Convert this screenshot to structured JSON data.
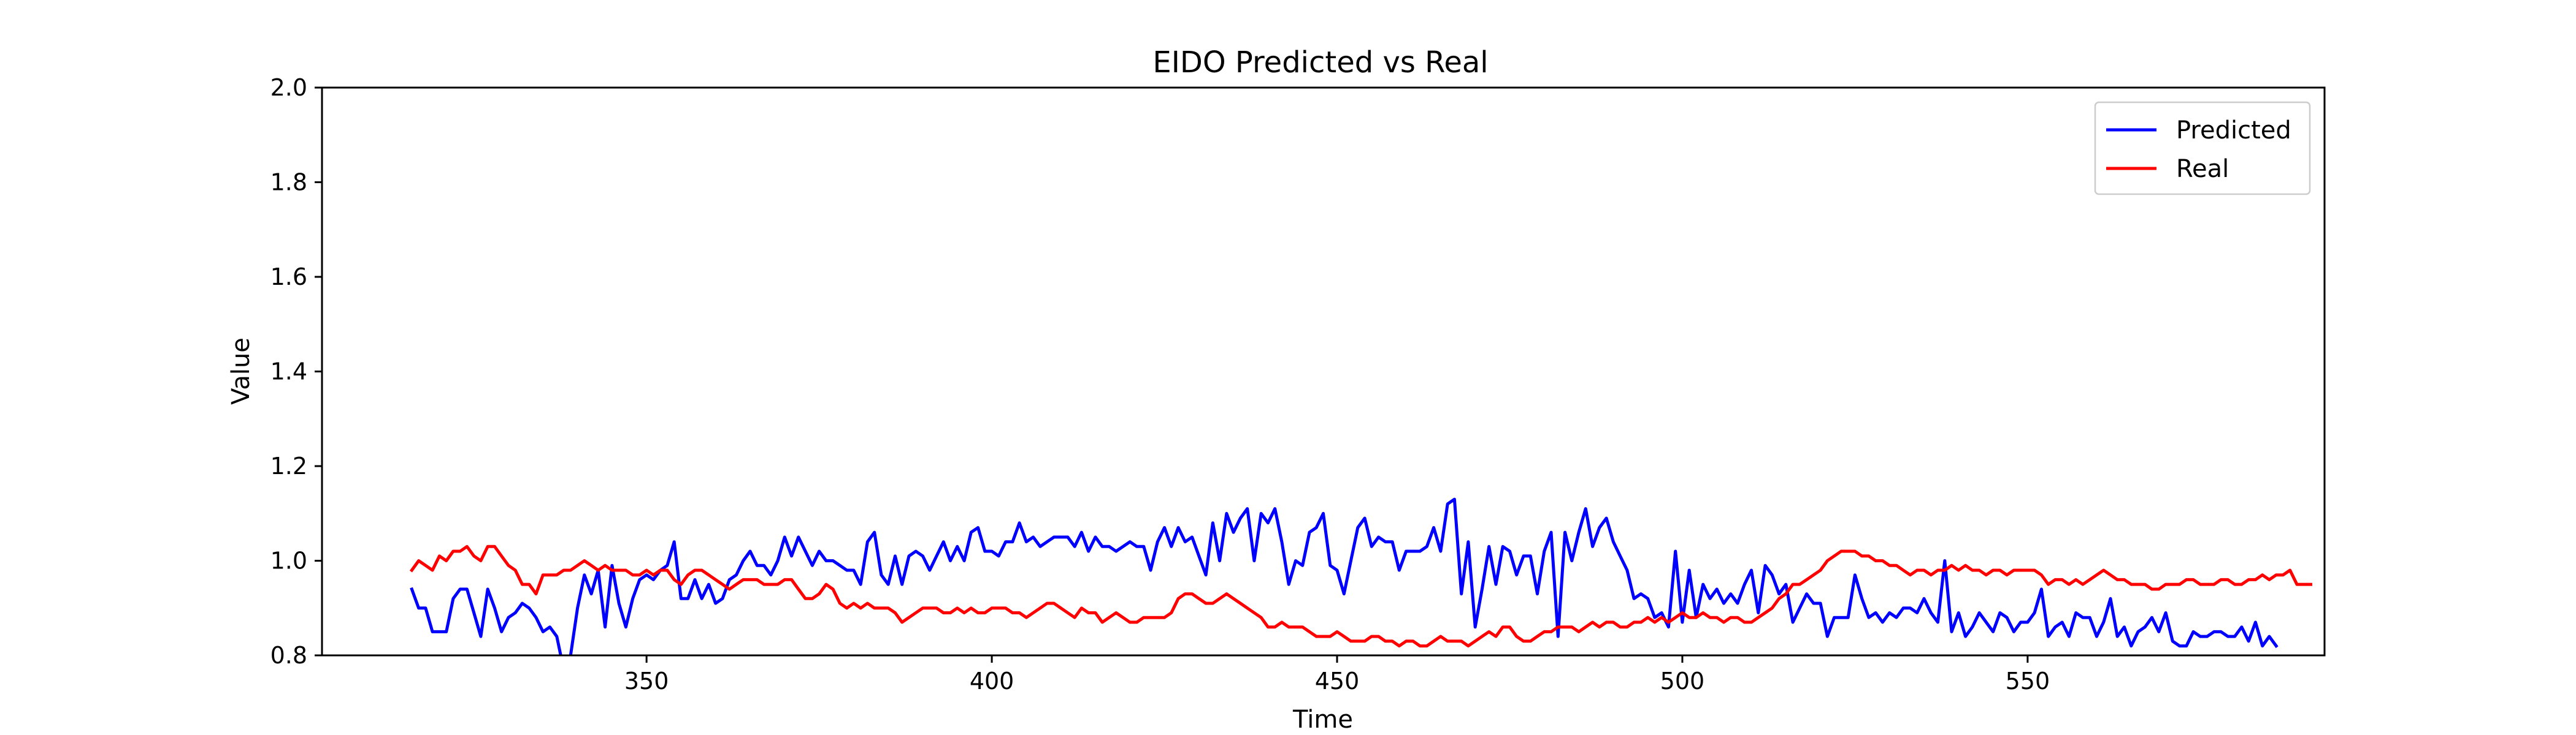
{
  "chart_data": {
    "type": "line",
    "title": "EIDO Predicted vs Real",
    "xlabel": "Time",
    "ylabel": "Value",
    "xlim": [
      303,
      593
    ],
    "ylim": [
      0.8,
      2.0
    ],
    "xticks": [
      350,
      400,
      450,
      500,
      550
    ],
    "yticks": [
      0.8,
      1.0,
      1.2,
      1.4,
      1.6,
      1.8,
      2.0
    ],
    "grid": false,
    "legend_position": "top-right",
    "series": [
      {
        "name": "Predicted",
        "color": "#0000ff",
        "x_start": 316,
        "values": [
          0.94,
          0.9,
          0.9,
          0.85,
          0.85,
          0.85,
          0.92,
          0.94,
          0.94,
          0.89,
          0.84,
          0.94,
          0.9,
          0.85,
          0.88,
          0.89,
          0.91,
          0.9,
          0.88,
          0.85,
          0.86,
          0.84,
          0.77,
          0.8,
          0.9,
          0.97,
          0.93,
          0.98,
          0.86,
          0.99,
          0.91,
          0.86,
          0.92,
          0.96,
          0.97,
          0.96,
          0.98,
          0.99,
          1.04,
          0.92,
          0.92,
          0.96,
          0.92,
          0.95,
          0.91,
          0.92,
          0.96,
          0.97,
          1.0,
          1.02,
          0.99,
          0.99,
          0.97,
          1.0,
          1.05,
          1.01,
          1.05,
          1.02,
          0.99,
          1.02,
          1.0,
          1.0,
          0.99,
          0.98,
          0.98,
          0.95,
          1.04,
          1.06,
          0.97,
          0.95,
          1.01,
          0.95,
          1.01,
          1.02,
          1.01,
          0.98,
          1.01,
          1.04,
          1.0,
          1.03,
          1.0,
          1.06,
          1.07,
          1.02,
          1.02,
          1.01,
          1.04,
          1.04,
          1.08,
          1.04,
          1.05,
          1.03,
          1.04,
          1.05,
          1.05,
          1.05,
          1.03,
          1.06,
          1.02,
          1.05,
          1.03,
          1.03,
          1.02,
          1.03,
          1.04,
          1.03,
          1.03,
          0.98,
          1.04,
          1.07,
          1.03,
          1.07,
          1.04,
          1.05,
          1.01,
          0.97,
          1.08,
          1.0,
          1.1,
          1.06,
          1.09,
          1.11,
          1.0,
          1.1,
          1.08,
          1.11,
          1.04,
          0.95,
          1.0,
          0.99,
          1.06,
          1.07,
          1.1,
          0.99,
          0.98,
          0.93,
          1.0,
          1.07,
          1.09,
          1.03,
          1.05,
          1.04,
          1.04,
          0.98,
          1.02,
          1.02,
          1.02,
          1.03,
          1.07,
          1.02,
          1.12,
          1.13,
          0.93,
          1.04,
          0.86,
          0.94,
          1.03,
          0.95,
          1.03,
          1.02,
          0.97,
          1.01,
          1.01,
          0.93,
          1.02,
          1.06,
          0.84,
          1.06,
          1.0,
          1.06,
          1.11,
          1.03,
          1.07,
          1.09,
          1.04,
          1.01,
          0.98,
          0.92,
          0.93,
          0.92,
          0.88,
          0.89,
          0.86,
          1.02,
          0.87,
          0.98,
          0.88,
          0.95,
          0.92,
          0.94,
          0.91,
          0.93,
          0.91,
          0.95,
          0.98,
          0.89,
          0.99,
          0.97,
          0.93,
          0.95,
          0.87,
          0.9,
          0.93,
          0.91,
          0.91,
          0.84,
          0.88,
          0.88,
          0.88,
          0.97,
          0.92,
          0.88,
          0.89,
          0.87,
          0.89,
          0.88,
          0.9,
          0.9,
          0.89,
          0.92,
          0.89,
          0.87,
          1.0,
          0.85,
          0.89,
          0.84,
          0.86,
          0.89,
          0.87,
          0.85,
          0.89,
          0.88,
          0.85,
          0.87,
          0.87,
          0.89,
          0.94,
          0.84,
          0.86,
          0.87,
          0.84,
          0.89,
          0.88,
          0.88,
          0.84,
          0.87,
          0.92,
          0.84,
          0.86,
          0.82,
          0.85,
          0.86,
          0.88,
          0.85,
          0.89,
          0.83,
          0.82,
          0.82,
          0.85,
          0.84,
          0.84,
          0.85,
          0.85,
          0.84,
          0.84,
          0.86,
          0.83,
          0.87,
          0.82,
          0.84,
          0.82
        ]
      },
      {
        "name": "Real",
        "color": "#ff0000",
        "x_start": 316,
        "values": [
          0.98,
          1.0,
          0.99,
          0.98,
          1.01,
          1.0,
          1.02,
          1.02,
          1.03,
          1.01,
          1.0,
          1.03,
          1.03,
          1.01,
          0.99,
          0.98,
          0.95,
          0.95,
          0.93,
          0.97,
          0.97,
          0.97,
          0.98,
          0.98,
          0.99,
          1.0,
          0.99,
          0.98,
          0.99,
          0.98,
          0.98,
          0.98,
          0.97,
          0.97,
          0.98,
          0.97,
          0.98,
          0.98,
          0.96,
          0.95,
          0.97,
          0.98,
          0.98,
          0.97,
          0.96,
          0.95,
          0.94,
          0.95,
          0.96,
          0.96,
          0.96,
          0.95,
          0.95,
          0.95,
          0.96,
          0.96,
          0.94,
          0.92,
          0.92,
          0.93,
          0.95,
          0.94,
          0.91,
          0.9,
          0.91,
          0.9,
          0.91,
          0.9,
          0.9,
          0.9,
          0.89,
          0.87,
          0.88,
          0.89,
          0.9,
          0.9,
          0.9,
          0.89,
          0.89,
          0.9,
          0.89,
          0.9,
          0.89,
          0.89,
          0.9,
          0.9,
          0.9,
          0.89,
          0.89,
          0.88,
          0.89,
          0.9,
          0.91,
          0.91,
          0.9,
          0.89,
          0.88,
          0.9,
          0.89,
          0.89,
          0.87,
          0.88,
          0.89,
          0.88,
          0.87,
          0.87,
          0.88,
          0.88,
          0.88,
          0.88,
          0.89,
          0.92,
          0.93,
          0.93,
          0.92,
          0.91,
          0.91,
          0.92,
          0.93,
          0.92,
          0.91,
          0.9,
          0.89,
          0.88,
          0.86,
          0.86,
          0.87,
          0.86,
          0.86,
          0.86,
          0.85,
          0.84,
          0.84,
          0.84,
          0.85,
          0.84,
          0.83,
          0.83,
          0.83,
          0.84,
          0.84,
          0.83,
          0.83,
          0.82,
          0.83,
          0.83,
          0.82,
          0.82,
          0.83,
          0.84,
          0.83,
          0.83,
          0.83,
          0.82,
          0.83,
          0.84,
          0.85,
          0.84,
          0.86,
          0.86,
          0.84,
          0.83,
          0.83,
          0.84,
          0.85,
          0.85,
          0.86,
          0.86,
          0.86,
          0.85,
          0.86,
          0.87,
          0.86,
          0.87,
          0.87,
          0.86,
          0.86,
          0.87,
          0.87,
          0.88,
          0.87,
          0.88,
          0.87,
          0.88,
          0.89,
          0.88,
          0.88,
          0.89,
          0.88,
          0.88,
          0.87,
          0.88,
          0.88,
          0.87,
          0.87,
          0.88,
          0.89,
          0.9,
          0.92,
          0.93,
          0.95,
          0.95,
          0.96,
          0.97,
          0.98,
          1.0,
          1.01,
          1.02,
          1.02,
          1.02,
          1.01,
          1.01,
          1.0,
          1.0,
          0.99,
          0.99,
          0.98,
          0.97,
          0.98,
          0.98,
          0.97,
          0.98,
          0.98,
          0.99,
          0.98,
          0.99,
          0.98,
          0.98,
          0.97,
          0.98,
          0.98,
          0.97,
          0.98,
          0.98,
          0.98,
          0.98,
          0.97,
          0.95,
          0.96,
          0.96,
          0.95,
          0.96,
          0.95,
          0.96,
          0.97,
          0.98,
          0.97,
          0.96,
          0.96,
          0.95,
          0.95,
          0.95,
          0.94,
          0.94,
          0.95,
          0.95,
          0.95,
          0.96,
          0.96,
          0.95,
          0.95,
          0.95,
          0.96,
          0.96,
          0.95,
          0.95,
          0.96,
          0.96,
          0.97,
          0.96,
          0.97,
          0.97,
          0.98,
          0.95,
          0.95,
          0.95
        ]
      }
    ]
  }
}
